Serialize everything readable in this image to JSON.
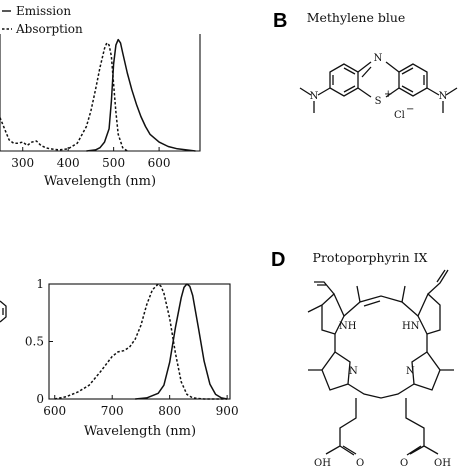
{
  "panels": {
    "B": {
      "letter": "B",
      "title": "Methylene blue",
      "labels": {
        "N_top": "N",
        "S_plus": "S",
        "plus": "+",
        "N_left": "N",
        "N_right": "N",
        "counterion": "Cl",
        "minus": "−"
      }
    },
    "D": {
      "letter": "D",
      "title": "Protoporphyrin IX",
      "labels": {
        "NH_left": "NH",
        "HN_right": "HN",
        "N_left": "N",
        "N_right": "N",
        "OH_left": "OH",
        "OH_right": "OH",
        "O_left": "O",
        "O_right": "O"
      }
    }
  },
  "chart_data": [
    {
      "type": "line",
      "xlabel": "Wavelength (nm)",
      "ylabel": "",
      "xlim": [
        250,
        690
      ],
      "ylim": [
        0,
        1.05
      ],
      "xticks": [
        300,
        400,
        500,
        600
      ],
      "grid": false,
      "legend": {
        "position": "top-left",
        "entries": [
          "Emission",
          "Absorption"
        ]
      },
      "series": [
        {
          "name": "Emission",
          "style": "solid",
          "x": [
            440,
            460,
            470,
            480,
            490,
            495,
            500,
            505,
            510,
            515,
            520,
            530,
            540,
            550,
            560,
            570,
            580,
            600,
            620,
            640,
            660,
            680
          ],
          "y": [
            0.0,
            0.01,
            0.03,
            0.08,
            0.2,
            0.45,
            0.78,
            0.95,
            1.0,
            0.97,
            0.88,
            0.7,
            0.55,
            0.42,
            0.31,
            0.22,
            0.15,
            0.08,
            0.04,
            0.02,
            0.01,
            0.0
          ]
        },
        {
          "name": "Absorption",
          "style": "dashed",
          "x": [
            250,
            260,
            270,
            280,
            290,
            300,
            310,
            320,
            330,
            340,
            350,
            360,
            380,
            400,
            420,
            440,
            450,
            460,
            470,
            480,
            485,
            490,
            495,
            500,
            505,
            510,
            520,
            530
          ],
          "y": [
            0.3,
            0.2,
            0.1,
            0.07,
            0.07,
            0.08,
            0.05,
            0.08,
            0.09,
            0.05,
            0.03,
            0.02,
            0.01,
            0.02,
            0.07,
            0.22,
            0.36,
            0.55,
            0.75,
            0.92,
            0.97,
            0.95,
            0.85,
            0.6,
            0.35,
            0.15,
            0.03,
            0.0
          ]
        }
      ]
    },
    {
      "type": "line",
      "xlabel": "Wavelength (nm)",
      "ylabel": "",
      "xlim": [
        590,
        905
      ],
      "ylim": [
        0,
        1
      ],
      "xticks": [
        600,
        700,
        800,
        900
      ],
      "yticks": [
        0,
        0.5,
        1
      ],
      "yticklabels": [
        "0",
        "0.5",
        "1"
      ],
      "grid": false,
      "series": [
        {
          "style": "dashed",
          "x": [
            600,
            620,
            640,
            660,
            680,
            700,
            710,
            720,
            730,
            740,
            750,
            760,
            770,
            780,
            785,
            790,
            800,
            810,
            820,
            830,
            840,
            860,
            880,
            900
          ],
          "y": [
            0.0,
            0.02,
            0.06,
            0.12,
            0.24,
            0.37,
            0.41,
            0.42,
            0.45,
            0.52,
            0.64,
            0.82,
            0.95,
            1.0,
            0.98,
            0.92,
            0.7,
            0.4,
            0.15,
            0.04,
            0.01,
            0.0,
            0.0,
            0.0
          ]
        },
        {
          "style": "solid",
          "x": [
            740,
            760,
            780,
            790,
            800,
            810,
            820,
            825,
            830,
            835,
            840,
            850,
            860,
            870,
            880,
            890,
            900
          ],
          "y": [
            0.0,
            0.01,
            0.05,
            0.12,
            0.32,
            0.62,
            0.88,
            0.97,
            1.0,
            0.98,
            0.9,
            0.62,
            0.33,
            0.13,
            0.04,
            0.01,
            0.0
          ]
        }
      ]
    }
  ]
}
